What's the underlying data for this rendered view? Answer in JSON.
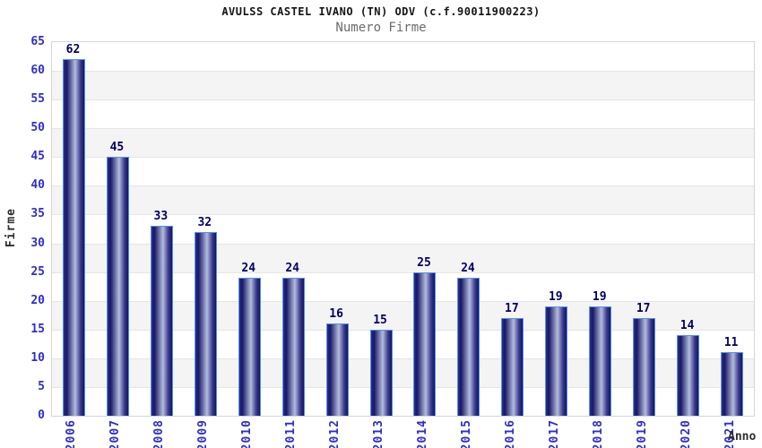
{
  "header": {
    "title": "AVULSS CASTEL IVANO (TN) ODV (c.f.90011900223)",
    "subtitle": "Numero Firme"
  },
  "chart_data": {
    "type": "bar",
    "title": "AVULSS CASTEL IVANO (TN) ODV (c.f.90011900223)",
    "subtitle": "Numero Firme",
    "xlabel": "Anno",
    "ylabel": "Firme",
    "categories": [
      "2006",
      "2007",
      "2008",
      "2009",
      "2010",
      "2011",
      "2012",
      "2013",
      "2014",
      "2015",
      "2016",
      "2017",
      "2018",
      "2019",
      "2020",
      "2021"
    ],
    "values": [
      62,
      45,
      33,
      32,
      24,
      24,
      16,
      15,
      25,
      24,
      17,
      19,
      19,
      17,
      14,
      11
    ],
    "ylim": [
      0,
      65
    ],
    "ytick_step": 5,
    "yticks": [
      0,
      5,
      10,
      15,
      20,
      25,
      30,
      35,
      40,
      45,
      50,
      55,
      60,
      65
    ],
    "grid": true,
    "legend": "none",
    "colors": {
      "bar_edge": "#5390ee",
      "bar_dark": "#14145f",
      "bar_light": "#b4bcdc",
      "axis_tick_label": "#2d2dcf",
      "value_label": "#000066",
      "band_fill": "#f4f4f4",
      "gridline": "#e5e5e5",
      "plot_border": "#d6d6d6",
      "subtitle_color": "#6b6b6b",
      "title_color": "#151515"
    }
  }
}
